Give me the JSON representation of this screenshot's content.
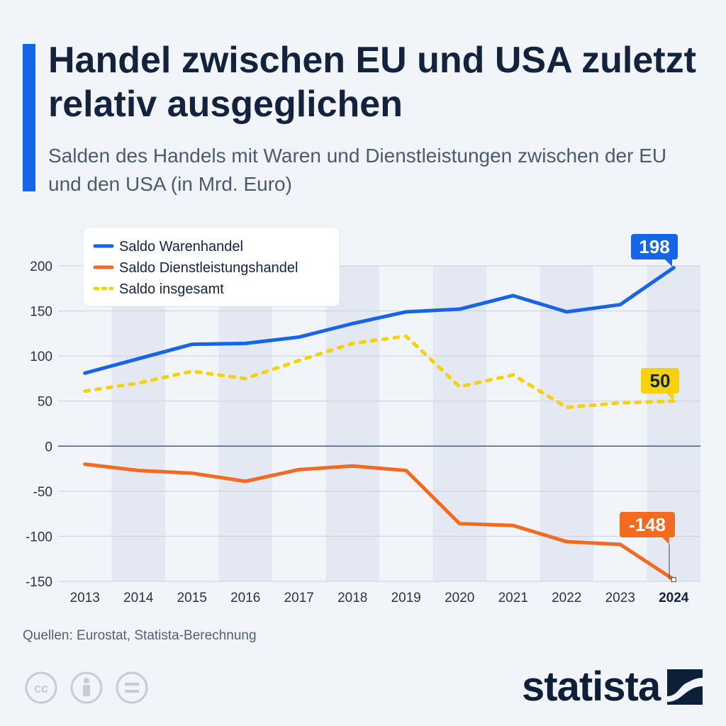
{
  "header": {
    "title": "Handel zwischen EU und USA zuletzt relativ ausgeglichen",
    "subtitle": "Salden des Handels mit Waren und Dienstleistungen zwischen der EU und den USA (in Mrd. Euro)"
  },
  "footer": {
    "source": "Quellen: Eurostat, Statista-Berechnung",
    "logo": "statista",
    "license_icons": [
      "cc-icon",
      "attribution-icon",
      "no-derivatives-icon"
    ]
  },
  "colors": {
    "accent": "#1565e6",
    "warenhandel": "#1565e6",
    "dienstleistung": "#f26b21",
    "insgesamt": "#f5d20c",
    "text": "#14233d"
  },
  "chart_data": {
    "type": "line",
    "categories": [
      "2013",
      "2014",
      "2015",
      "2016",
      "2017",
      "2018",
      "2019",
      "2020",
      "2021",
      "2022",
      "2023",
      "2024"
    ],
    "highlight_category": "2024",
    "yticks": [
      200,
      150,
      100,
      50,
      0,
      -50,
      -100,
      -150
    ],
    "ylim": [
      -150,
      210
    ],
    "grid": true,
    "legend_position": "top-left",
    "series": [
      {
        "name": "Saldo Warenhandel",
        "style": "solid",
        "color": "#1565e6",
        "values": [
          81,
          97,
          113,
          114,
          121,
          136,
          149,
          152,
          167,
          149,
          157,
          198
        ],
        "end_label": "198"
      },
      {
        "name": "Saldo Dienstleistungshandel",
        "style": "solid",
        "color": "#f26b21",
        "values": [
          -20,
          -27,
          -30,
          -39,
          -26,
          -22,
          -27,
          -86,
          -88,
          -106,
          -109,
          -148
        ],
        "end_label": "-148"
      },
      {
        "name": "Saldo insgesamt",
        "style": "dotted",
        "color": "#f5d20c",
        "values": [
          61,
          70,
          83,
          75,
          95,
          114,
          122,
          66,
          79,
          43,
          48,
          50
        ],
        "end_label": "50"
      }
    ]
  }
}
